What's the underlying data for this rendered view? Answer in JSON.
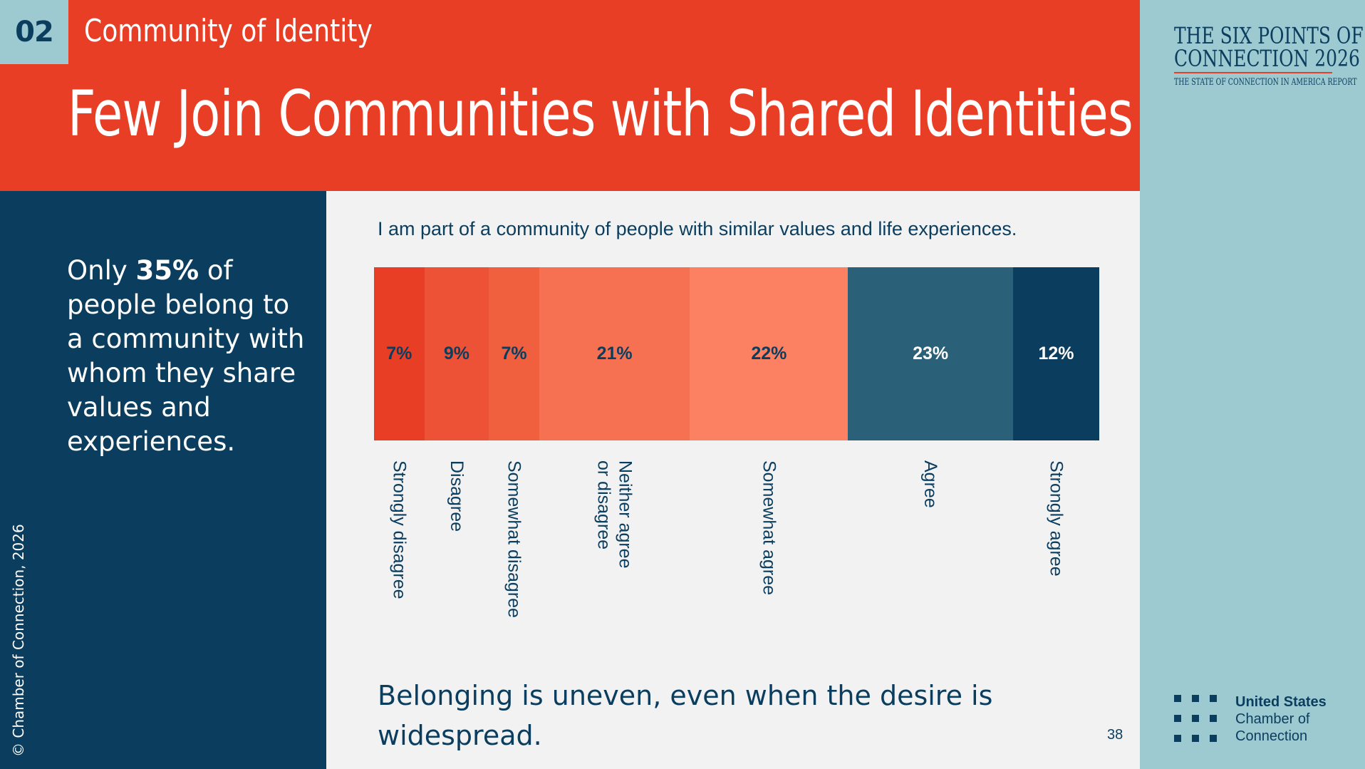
{
  "header": {
    "section_number": "02",
    "section_title": "Community of Identity",
    "page_title": "Few Join Communities with Shared Identities"
  },
  "report": {
    "title_line1": "THE SIX POINTS OF",
    "title_line2": "CONNECTION 2026",
    "subtitle": "THE STATE OF CONNECTION IN AMERICA REPORT"
  },
  "sidebar": {
    "callout_prefix": "Only ",
    "callout_highlight": "35%",
    "callout_suffix": " of people belong to a community with whom they share values and experiences.",
    "copyright": "© Chamber of Connection, 2026"
  },
  "chart_data": {
    "type": "bar",
    "orientation": "horizontal-stacked",
    "title": "I am part of a community of people with similar values and life experiences.",
    "categories": [
      "Strongly disagree",
      "Disagree",
      "Somewhat disagree",
      "Neither agree\nor disagree",
      "Somewhat agree",
      "Agree",
      "Strongly agree"
    ],
    "values": [
      7,
      9,
      7,
      21,
      22,
      23,
      12
    ],
    "value_labels": [
      "7%",
      "9%",
      "7%",
      "21%",
      "22%",
      "23%",
      "12%"
    ],
    "colors": [
      "#e83e25",
      "#ed5236",
      "#f0603f",
      "#f67052",
      "#fc8062",
      "#2a6078",
      "#0b3d5e"
    ],
    "label_colors": [
      "#0b3d5e",
      "#0b3d5e",
      "#0b3d5e",
      "#0b3d5e",
      "#0b3d5e",
      "#ffffff",
      "#ffffff"
    ]
  },
  "takeaway": "Belonging is uneven, even when the desire is widespread.",
  "page_number": "38",
  "footer_logo": {
    "name_line1": "United States",
    "name_line2": "Chamber of",
    "name_line3": "Connection",
    "icon": "dot-grid-icon"
  }
}
